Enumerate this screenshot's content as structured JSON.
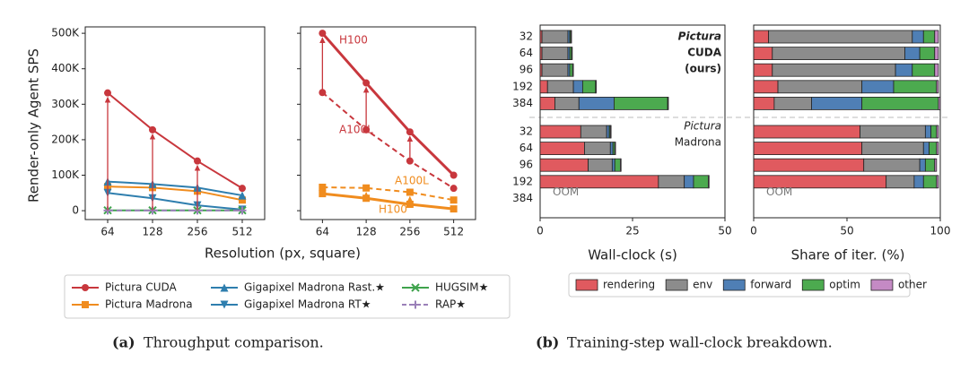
{
  "chart_data": [
    {
      "type": "line",
      "ylabel": "Render-only Agent SPS",
      "xlabel": "Resolution (px, square)",
      "caption_label": "(a)",
      "caption": "Throughput comparison.",
      "categories": [
        "64",
        "128",
        "256",
        "512"
      ],
      "ylim": [
        -25000,
        518000
      ],
      "yticks": [
        0,
        {
          "value": 100000,
          "label": "100K"
        },
        {
          "value": 200000,
          "label": "200K"
        },
        {
          "value": 300000,
          "label": "300K"
        },
        {
          "value": 400000,
          "label": "400K"
        },
        {
          "value": 500000,
          "label": "500K"
        }
      ],
      "series": [
        {
          "name": "Pictura CUDA",
          "color": "#c8373d",
          "marker": "circle",
          "values": [
            332000,
            228000,
            140000,
            63000
          ]
        },
        {
          "name": "Pictura Madrona",
          "color": "#f08c1e",
          "marker": "square",
          "values": [
            68000,
            65000,
            55000,
            30000
          ]
        },
        {
          "name": "Gigapixel Madrona Rast.★",
          "color": "#2e7eae",
          "marker": "triangle-up",
          "values": [
            82000,
            75000,
            65000,
            43000
          ]
        },
        {
          "name": "Gigapixel Madrona RT★",
          "color": "#2e7eae",
          "marker": "triangle-down",
          "values": [
            50000,
            35000,
            15000,
            3000
          ]
        },
        {
          "name": "HUGSIM★",
          "color": "#3fa34d",
          "marker": "x",
          "values": [
            1000,
            1000,
            1000,
            1000
          ]
        },
        {
          "name": "RAP★",
          "color": "#9a80b8",
          "marker": "plus",
          "dash": true,
          "values": [
            500,
            500,
            500,
            500
          ]
        }
      ]
    },
    {
      "type": "line",
      "categories": [
        "64",
        "128",
        "256",
        "512"
      ],
      "ylim": [
        -25000,
        518000
      ],
      "series": [
        {
          "name": "H100",
          "color": "#c8373d",
          "marker": "circle",
          "width": 3,
          "values": [
            500000,
            360000,
            222000,
            100000
          ]
        },
        {
          "name": "A100L",
          "color": "#c8373d",
          "marker": "circle",
          "dash": true,
          "values": [
            333000,
            228000,
            140000,
            63000
          ]
        },
        {
          "name": "A100L",
          "color": "#f08c1e",
          "marker": "square",
          "dash": true,
          "values": [
            66000,
            64000,
            52000,
            30000
          ]
        },
        {
          "name": "H100",
          "color": "#f08c1e",
          "marker": "square",
          "width": 3,
          "values": [
            48000,
            35000,
            18000,
            5000
          ]
        }
      ]
    },
    {
      "type": "hbar-stacked",
      "xlabel": "Wall-clock (s)",
      "caption_label": "(b)",
      "caption": "Training-step wall-clock breakdown.",
      "categories": [
        "32",
        "64",
        "96",
        "192",
        "384",
        "32",
        "64",
        "96",
        "192",
        "384"
      ],
      "group_labels": [
        [
          "Pictura",
          "CUDA",
          "(ours)"
        ],
        [
          "Pictura",
          "Madrona"
        ]
      ],
      "oom_label": "OOM",
      "xlim": [
        0,
        50
      ],
      "xticks": [
        0,
        25,
        50
      ],
      "series": [
        {
          "name": "rendering",
          "color": "#e05a5f",
          "values": [
            0.5,
            0.5,
            0.5,
            2,
            4,
            11,
            12,
            13,
            32,
            null
          ]
        },
        {
          "name": "env",
          "color": "#8c8c8c",
          "values": [
            7,
            7,
            7,
            7,
            6.5,
            7,
            7,
            6.5,
            7,
            null
          ]
        },
        {
          "name": "forward",
          "color": "#4f7fb5",
          "values": [
            0.5,
            0.5,
            0.5,
            2.5,
            9.5,
            0.7,
            0.7,
            0.7,
            2.5,
            null
          ]
        },
        {
          "name": "optim",
          "color": "#4caa4f",
          "values": [
            0.3,
            0.5,
            0.8,
            3.5,
            14.5,
            0.3,
            0.5,
            1.5,
            4,
            null
          ]
        },
        {
          "name": "other",
          "color": "#c48ac4",
          "values": [
            0.2,
            0.2,
            0.2,
            0.2,
            0.2,
            0.2,
            0.2,
            0.2,
            0.2,
            null
          ]
        }
      ]
    },
    {
      "type": "hbar-stacked",
      "xlabel": "Share of iter. (%)",
      "oom_label": "OOM",
      "xlim": [
        0,
        100
      ],
      "xticks": [
        0,
        50,
        100
      ],
      "series": [
        {
          "color": "#e05a5f",
          "values": [
            8,
            10,
            10,
            13,
            11,
            57,
            58,
            59,
            71,
            null
          ]
        },
        {
          "color": "#8c8c8c",
          "values": [
            77,
            71,
            66,
            45,
            20,
            35,
            33,
            30,
            15,
            null
          ]
        },
        {
          "color": "#4f7fb5",
          "values": [
            6,
            8,
            9,
            17,
            27,
            3,
            3,
            3,
            5,
            null
          ]
        },
        {
          "color": "#4caa4f",
          "values": [
            6,
            8,
            12,
            23,
            41,
            3,
            4,
            5,
            7,
            null
          ]
        },
        {
          "color": "#c48ac4",
          "values": [
            2,
            2,
            2,
            1,
            1,
            1,
            1,
            1,
            1,
            null
          ]
        }
      ]
    }
  ]
}
